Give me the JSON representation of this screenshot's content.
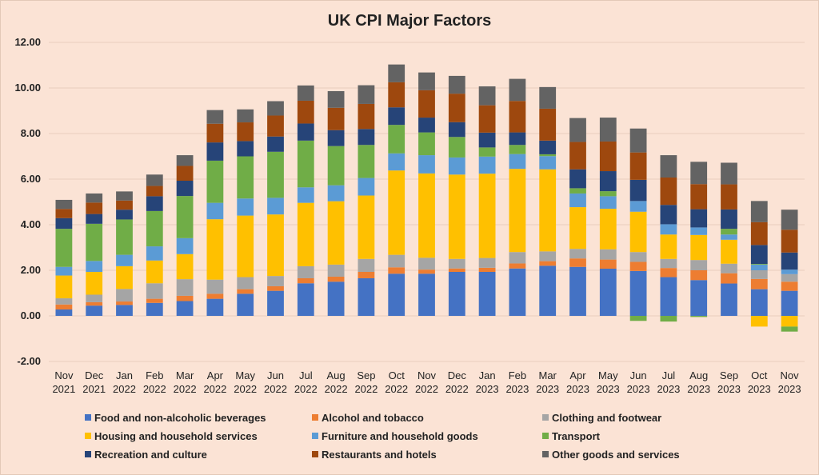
{
  "chart_data": {
    "type": "bar",
    "stacked": true,
    "title": "UK CPI Major Factors",
    "xlabel": "",
    "ylabel": "",
    "ylim": [
      -2,
      12
    ],
    "yticks": [
      "-2.00",
      "0.00",
      "2.00",
      "4.00",
      "6.00",
      "8.00",
      "10.00",
      "12.00"
    ],
    "ytick_values": [
      -2,
      0,
      2,
      4,
      6,
      8,
      10,
      12
    ],
    "grid": true,
    "legend_position": "bottom",
    "categories": [
      [
        "Nov",
        "2021"
      ],
      [
        "Dec",
        "2021"
      ],
      [
        "Jan",
        "2022"
      ],
      [
        "Feb",
        "2022"
      ],
      [
        "Mar",
        "2022"
      ],
      [
        "Apr",
        "2022"
      ],
      [
        "May",
        "2022"
      ],
      [
        "Jun",
        "2022"
      ],
      [
        "Jul",
        "2022"
      ],
      [
        "Aug",
        "2022"
      ],
      [
        "Sep",
        "2022"
      ],
      [
        "Oct",
        "2022"
      ],
      [
        "Nov",
        "2022"
      ],
      [
        "Dec",
        "2022"
      ],
      [
        "Jan",
        "2023"
      ],
      [
        "Feb",
        "2023"
      ],
      [
        "Mar",
        "2023"
      ],
      [
        "Apr",
        "2023"
      ],
      [
        "May",
        "2023"
      ],
      [
        "Jun",
        "2023"
      ],
      [
        "Jul",
        "2023"
      ],
      [
        "Aug",
        "2023"
      ],
      [
        "Sep",
        "2023"
      ],
      [
        "Oct",
        "2023"
      ],
      [
        "Nov",
        "2023"
      ]
    ],
    "series": [
      {
        "name": "Food and non-alcoholic beverages",
        "color": "#4472c4",
        "values": [
          0.28,
          0.45,
          0.48,
          0.57,
          0.65,
          0.75,
          0.97,
          1.1,
          1.43,
          1.5,
          1.65,
          1.85,
          1.85,
          1.93,
          1.93,
          2.08,
          2.2,
          2.15,
          2.07,
          1.97,
          1.7,
          1.57,
          1.42,
          1.17,
          1.1
        ]
      },
      {
        "name": "Alcohol and tobacco",
        "color": "#ed7d31",
        "values": [
          0.22,
          0.15,
          0.15,
          0.18,
          0.23,
          0.22,
          0.2,
          0.2,
          0.22,
          0.22,
          0.28,
          0.28,
          0.18,
          0.15,
          0.18,
          0.22,
          0.2,
          0.37,
          0.4,
          0.4,
          0.4,
          0.43,
          0.45,
          0.45,
          0.4
        ]
      },
      {
        "name": "Clothing and footwear",
        "color": "#a5a5a5",
        "values": [
          0.27,
          0.33,
          0.55,
          0.68,
          0.73,
          0.62,
          0.53,
          0.45,
          0.53,
          0.53,
          0.57,
          0.55,
          0.52,
          0.42,
          0.43,
          0.5,
          0.43,
          0.42,
          0.45,
          0.43,
          0.4,
          0.45,
          0.42,
          0.38,
          0.33
        ]
      },
      {
        "name": "Housing and household services",
        "color": "#ffc000",
        "values": [
          1.0,
          1.0,
          1.0,
          1.0,
          1.1,
          2.65,
          2.7,
          2.7,
          2.78,
          2.78,
          2.78,
          3.7,
          3.7,
          3.7,
          3.7,
          3.65,
          3.6,
          1.83,
          1.78,
          1.77,
          1.07,
          1.1,
          1.05,
          -0.47,
          -0.47
        ]
      },
      {
        "name": "Furniture and household goods",
        "color": "#5b9bd5",
        "values": [
          0.38,
          0.48,
          0.5,
          0.62,
          0.7,
          0.72,
          0.75,
          0.73,
          0.68,
          0.7,
          0.77,
          0.75,
          0.8,
          0.75,
          0.75,
          0.65,
          0.58,
          0.6,
          0.55,
          0.47,
          0.45,
          0.33,
          0.23,
          0.25,
          0.2
        ]
      },
      {
        "name": "Transport",
        "color": "#70ad47",
        "values": [
          1.67,
          1.63,
          1.55,
          1.55,
          1.85,
          1.85,
          1.85,
          2.02,
          2.05,
          1.72,
          1.45,
          1.25,
          1.0,
          0.9,
          0.4,
          0.4,
          0.08,
          0.23,
          0.22,
          -0.22,
          -0.25,
          -0.05,
          0.25,
          0.03,
          -0.22
        ]
      },
      {
        "name": "Recreation and culture",
        "color": "#264478",
        "values": [
          0.47,
          0.43,
          0.43,
          0.65,
          0.67,
          0.8,
          0.67,
          0.67,
          0.75,
          0.7,
          0.7,
          0.77,
          0.65,
          0.65,
          0.65,
          0.55,
          0.6,
          0.83,
          0.88,
          0.93,
          0.85,
          0.8,
          0.85,
          0.83,
          0.75
        ]
      },
      {
        "name": "Restaurants and hotels",
        "color": "#9e480e",
        "values": [
          0.4,
          0.5,
          0.4,
          0.45,
          0.65,
          0.82,
          0.82,
          0.92,
          1.0,
          0.98,
          1.1,
          1.1,
          1.2,
          1.25,
          1.2,
          1.38,
          1.4,
          1.2,
          1.3,
          1.2,
          1.2,
          1.1,
          1.1,
          1.0,
          1.0
        ]
      },
      {
        "name": "Other goods and services",
        "color": "#636363",
        "values": [
          0.4,
          0.4,
          0.4,
          0.5,
          0.47,
          0.6,
          0.57,
          0.63,
          0.67,
          0.73,
          0.82,
          0.78,
          0.78,
          0.78,
          0.83,
          0.97,
          0.95,
          1.05,
          1.05,
          1.05,
          0.98,
          0.98,
          0.95,
          0.93,
          0.88
        ]
      }
    ]
  }
}
